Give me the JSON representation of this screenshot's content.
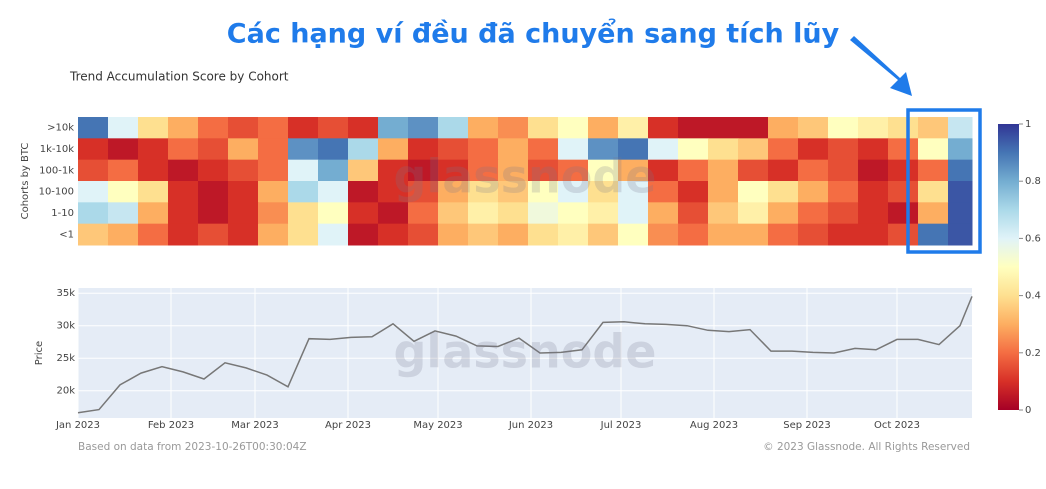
{
  "annotation": "Các hạng ví đều đã chuyển sang tích lũy",
  "watermark": "glassnode",
  "footer": {
    "source": "Based on data from 2023-10-26T00:30:04Z",
    "copyright": "© 2023 Glassnode. All Rights Reserved"
  },
  "chart_data": [
    {
      "type": "heatmap",
      "title": "Trend Accumulation Score by Cohort",
      "y_label": "Cohorts by BTC",
      "x": [
        0,
        10,
        20,
        30,
        40,
        50,
        60,
        70,
        80,
        90,
        100,
        110,
        120,
        130,
        140,
        150,
        160,
        170,
        180,
        190,
        200,
        210,
        220,
        230,
        240,
        250,
        260,
        270,
        280,
        290
      ],
      "xlim": [
        0,
        298
      ],
      "colorscale": "RdYlBu",
      "zlim": [
        0,
        1
      ],
      "zticks": [
        0,
        0.2,
        0.4,
        0.6,
        0.8,
        1
      ],
      "series": [
        {
          "name": ">10k",
          "values": [
            0.9,
            0.6,
            0.4,
            0.3,
            0.2,
            0.15,
            0.2,
            0.1,
            0.15,
            0.1,
            0.8,
            0.85,
            0.7,
            0.3,
            0.25,
            0.4,
            0.5,
            0.3,
            0.45,
            0.1,
            0.05,
            0.05,
            0.05,
            0.3,
            0.35,
            0.5,
            0.45,
            0.4,
            0.35,
            0.65
          ]
        },
        {
          "name": "1k-10k",
          "values": [
            0.1,
            0.05,
            0.1,
            0.2,
            0.15,
            0.3,
            0.2,
            0.85,
            0.9,
            0.7,
            0.3,
            0.1,
            0.15,
            0.2,
            0.3,
            0.2,
            0.6,
            0.85,
            0.9,
            0.6,
            0.5,
            0.4,
            0.35,
            0.2,
            0.1,
            0.15,
            0.1,
            0.2,
            0.5,
            0.8
          ]
        },
        {
          "name": "100-1k",
          "values": [
            0.15,
            0.2,
            0.1,
            0.05,
            0.1,
            0.15,
            0.2,
            0.6,
            0.8,
            0.35,
            0.1,
            0.05,
            0.1,
            0.2,
            0.3,
            0.15,
            0.2,
            0.5,
            0.3,
            0.1,
            0.2,
            0.3,
            0.15,
            0.1,
            0.2,
            0.15,
            0.05,
            0.1,
            0.2,
            0.9
          ]
        },
        {
          "name": "10-100",
          "values": [
            0.6,
            0.5,
            0.4,
            0.1,
            0.05,
            0.1,
            0.3,
            0.7,
            0.6,
            0.05,
            0.1,
            0.15,
            0.3,
            0.4,
            0.35,
            0.5,
            0.6,
            0.4,
            0.6,
            0.2,
            0.1,
            0.3,
            0.5,
            0.4,
            0.3,
            0.2,
            0.1,
            0.15,
            0.4,
            0.95
          ]
        },
        {
          "name": "1-10",
          "values": [
            0.7,
            0.65,
            0.3,
            0.1,
            0.05,
            0.1,
            0.25,
            0.4,
            0.5,
            0.1,
            0.05,
            0.2,
            0.35,
            0.45,
            0.4,
            0.55,
            0.5,
            0.45,
            0.6,
            0.3,
            0.15,
            0.35,
            0.45,
            0.3,
            0.2,
            0.15,
            0.1,
            0.05,
            0.3,
            0.95
          ]
        },
        {
          "name": "<1",
          "values": [
            0.35,
            0.3,
            0.2,
            0.1,
            0.15,
            0.1,
            0.3,
            0.4,
            0.6,
            0.05,
            0.1,
            0.15,
            0.3,
            0.35,
            0.3,
            0.4,
            0.45,
            0.35,
            0.5,
            0.25,
            0.2,
            0.3,
            0.3,
            0.2,
            0.15,
            0.1,
            0.1,
            0.15,
            0.9,
            0.95
          ]
        }
      ]
    },
    {
      "type": "line",
      "y_label": "Price",
      "color": "#777777",
      "grid": true,
      "x": [
        0,
        7,
        14,
        21,
        28,
        35,
        42,
        49,
        56,
        63,
        70,
        77,
        84,
        91,
        98,
        105,
        112,
        119,
        126,
        133,
        140,
        147,
        154,
        161,
        168,
        175,
        182,
        189,
        196,
        203,
        210,
        217,
        224,
        231,
        238,
        245,
        252,
        259,
        266,
        273,
        280,
        287,
        294,
        298
      ],
      "values": [
        16600,
        17100,
        20900,
        22700,
        23700,
        22900,
        21800,
        24300,
        23500,
        22400,
        20600,
        28000,
        27900,
        28200,
        28300,
        30300,
        27600,
        29200,
        28400,
        26900,
        26800,
        28100,
        25800,
        25900,
        26300,
        30500,
        30600,
        30300,
        30200,
        30000,
        29300,
        29100,
        29400,
        26100,
        26100,
        25900,
        25800,
        26500,
        26300,
        27900,
        27900,
        27100,
        30000,
        34500
      ],
      "xlim": [
        0,
        298
      ],
      "xticks": [
        {
          "value": 0,
          "label": "Jan 2023"
        },
        {
          "value": 31,
          "label": "Feb 2023"
        },
        {
          "value": 59,
          "label": "Mar 2023"
        },
        {
          "value": 90,
          "label": "Apr 2023"
        },
        {
          "value": 120,
          "label": "May 2023"
        },
        {
          "value": 151,
          "label": "Jun 2023"
        },
        {
          "value": 181,
          "label": "Jul 2023"
        },
        {
          "value": 212,
          "label": "Aug 2023"
        },
        {
          "value": 243,
          "label": "Sep 2023"
        },
        {
          "value": 273,
          "label": "Oct 2023"
        }
      ],
      "ylim": [
        15800,
        35800
      ],
      "yticks": [
        {
          "value": 20000,
          "label": "20k"
        },
        {
          "value": 25000,
          "label": "25k"
        },
        {
          "value": 30000,
          "label": "30k"
        },
        {
          "value": 35000,
          "label": "35k"
        }
      ]
    }
  ]
}
